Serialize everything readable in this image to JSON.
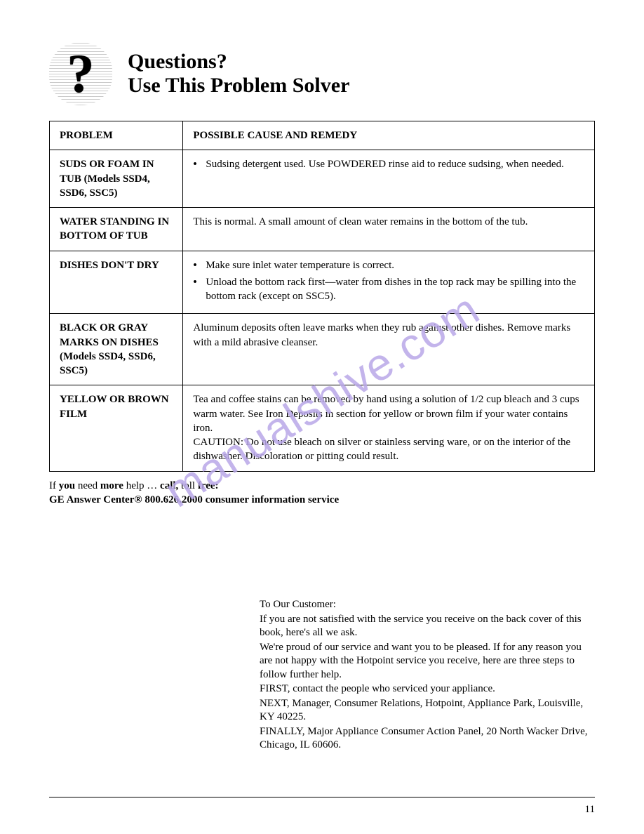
{
  "header": {
    "title_line1": "Questions?",
    "title_line2": "Use This Problem Solver",
    "icon_glyph": "?"
  },
  "table": {
    "header_left": "PROBLEM",
    "header_right": "POSSIBLE CAUSE AND REMEDY",
    "rows": [
      {
        "problem": "SUDS OR FOAM IN TUB (Models SSD4, SSD6, SSC5)",
        "bullets": [
          "Sudsing detergent used. Use POWDERED rinse aid to reduce sudsing, when needed."
        ],
        "plain": null
      },
      {
        "problem": "WATER STANDING IN BOTTOM OF TUB",
        "bullets": null,
        "plain": "This is normal. A small amount of clean water remains in the bottom of the tub."
      },
      {
        "problem": "DISHES DON'T DRY",
        "bullets": [
          "Make sure inlet water temperature is correct.",
          "Unload the bottom rack first—water from dishes in the top rack may be spilling into the bottom rack (except on SSC5)."
        ],
        "plain": null
      },
      {
        "problem": "BLACK OR GRAY MARKS ON DISHES (Models SSD4, SSD6, SSC5)",
        "bullets": null,
        "plain": "Aluminum deposits often leave marks when they rub against other dishes. Remove marks with a mild abrasive cleanser."
      },
      {
        "problem": "YELLOW OR BROWN FILM",
        "bullets": null,
        "plain": "Tea and coffee stains can be removed by hand using a solution of 1/2 cup bleach and 3 cups warm water. See Iron Deposits in section for yellow or brown film if your water contains iron.\nCAUTION: Do not use bleach on silver or stainless serving ware, or on the interior of the dishwasher. Discoloration or pitting could result."
      }
    ]
  },
  "help": {
    "line1_pre": "If ",
    "line1_b1": "you",
    "line1_mid1": " need ",
    "line1_b2": "more",
    "line1_mid2": " help … ",
    "line1_b3": "call,",
    "line1_mid3": " toll ",
    "line1_b4": "free:",
    "line2": "GE Answer Center® 800.626.2000\nconsumer information service"
  },
  "watermark": "manualshive.com",
  "complaint": {
    "title": "To Our Customer:",
    "lines": [
      "If you are not satisfied with the service you receive on the back cover of this book, here's all we ask.",
      "We're proud of our service and want you to be pleased. If for any reason you are not happy with the Hotpoint service you receive, here are three steps to follow further help.",
      "FIRST, contact the people who serviced your appliance.",
      "NEXT, Manager, Consumer Relations, Hotpoint, Appliance Park, Louisville, KY 40225.",
      "FINALLY, Major Appliance Consumer Action Panel, 20 North Wacker Drive, Chicago, IL 60606."
    ]
  },
  "page_number": "11",
  "colors": {
    "text": "#000000",
    "background": "#ffffff",
    "watermark": "#b9a8e8",
    "rule": "#000000"
  }
}
